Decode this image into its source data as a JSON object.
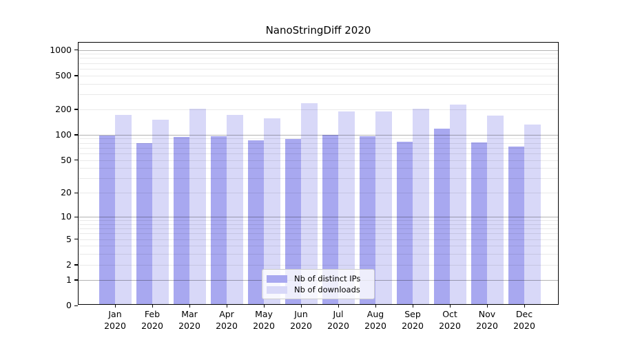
{
  "chart_data": {
    "type": "bar",
    "title": "NanoStringDiff 2020",
    "categories": [
      "Jan",
      "Feb",
      "Mar",
      "Apr",
      "May",
      "Jun",
      "Jul",
      "Aug",
      "Sep",
      "Oct",
      "Nov",
      "Dec"
    ],
    "year_label": "2020",
    "series": [
      {
        "name": "Nb of distinct IPs",
        "color": "#a8a8f0",
        "values": [
          95,
          76,
          91,
          92,
          82,
          86,
          96,
          92,
          79,
          113,
          78,
          70
        ]
      },
      {
        "name": "Nb of downloads",
        "color": "#d8d8f8",
        "values": [
          166,
          144,
          197,
          165,
          152,
          228,
          183,
          180,
          197,
          219,
          162,
          128
        ]
      }
    ],
    "yscale": "log1p",
    "ylim": [
      0,
      1200
    ],
    "y_ticks": [
      0,
      1,
      2,
      5,
      10,
      20,
      50,
      100,
      200,
      500,
      1000
    ],
    "gridlines": {
      "major": [
        1,
        10,
        100,
        1000
      ],
      "minor": [
        2,
        3,
        4,
        5,
        6,
        7,
        8,
        9,
        20,
        30,
        40,
        50,
        60,
        70,
        80,
        90,
        200,
        300,
        400,
        500,
        600,
        700,
        800,
        900
      ]
    },
    "grid": true,
    "legend": {
      "position": "lower-center",
      "entries": [
        "Nb of distinct IPs",
        "Nb of downloads"
      ]
    }
  },
  "colors": {
    "axis": "#000000",
    "major_grid": "#b5b5b5",
    "minor_grid": "#e9e9e9",
    "bar_ips": "#a8a8f0",
    "bar_downloads": "#d8d8f8",
    "legend_border": "#cccccc",
    "legend_background": "rgba(255,255,255,0.8)"
  }
}
